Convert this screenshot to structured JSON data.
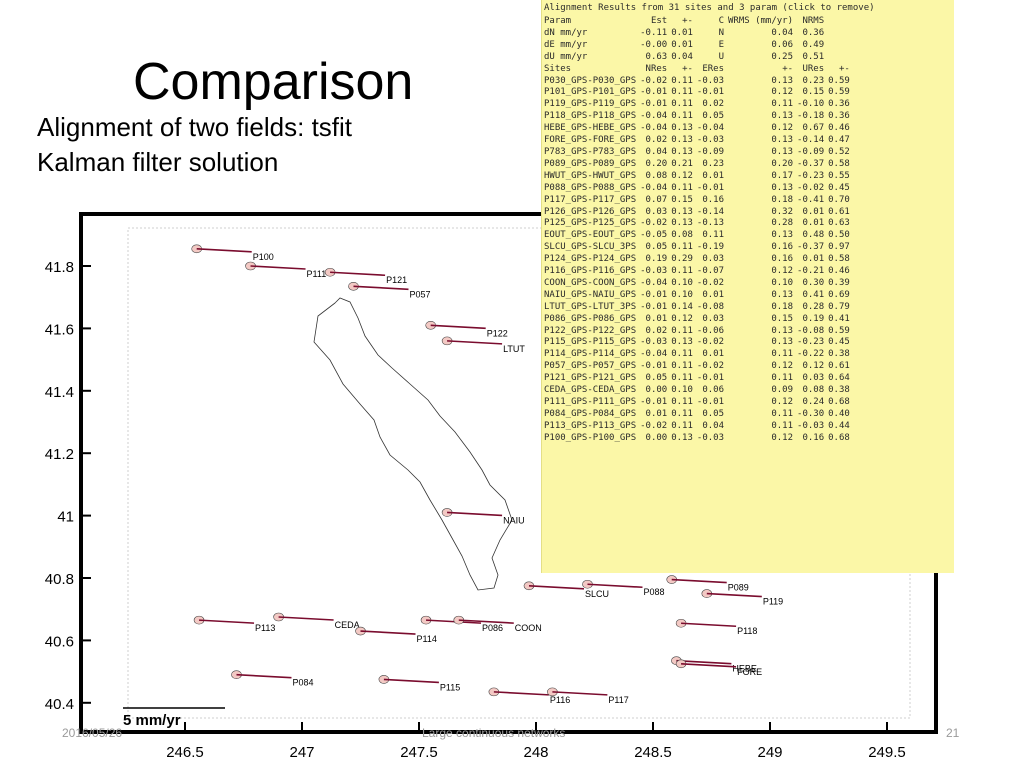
{
  "slide": {
    "title": "Comparison",
    "subtitle_line1": "Alignment of two fields: tsfit",
    "subtitle_line2": "Kalman filter solution",
    "date": "2016/05/26",
    "center_footer": "Large continuous networks",
    "page_number": "21"
  },
  "map": {
    "y_ticks": [
      "41.8",
      "41.6",
      "41.4",
      "41.2",
      "41",
      "40.8",
      "40.6",
      "40.4"
    ],
    "x_ticks": [
      "246.5",
      "247",
      "247.5",
      "248",
      "248.5",
      "249",
      "249.5"
    ],
    "scale_label": "5 mm/yr",
    "vector_color": "#7a0c2e",
    "ellipse_color": "#f3c9c4",
    "sites": [
      {
        "name": "P100",
        "lon": 246.55,
        "lat": 41.855
      },
      {
        "name": "P111",
        "lon": 246.78,
        "lat": 41.8
      },
      {
        "name": "P121",
        "lon": 247.12,
        "lat": 41.78
      },
      {
        "name": "P057",
        "lon": 247.22,
        "lat": 41.735
      },
      {
        "name": "P122",
        "lon": 247.55,
        "lat": 41.61
      },
      {
        "name": "LTUT",
        "lon": 247.62,
        "lat": 41.56
      },
      {
        "name": "NAIU",
        "lon": 247.62,
        "lat": 41.01
      },
      {
        "name": "SLCU",
        "lon": 247.97,
        "lat": 40.775
      },
      {
        "name": "P088",
        "lon": 248.22,
        "lat": 40.78
      },
      {
        "name": "P089",
        "lon": 248.58,
        "lat": 40.795
      },
      {
        "name": "P119",
        "lon": 248.73,
        "lat": 40.75
      },
      {
        "name": "P118",
        "lon": 248.62,
        "lat": 40.655
      },
      {
        "name": "HEBE",
        "lon": 248.6,
        "lat": 40.535
      },
      {
        "name": "FORE",
        "lon": 248.62,
        "lat": 40.525
      },
      {
        "name": "P113",
        "lon": 246.56,
        "lat": 40.665
      },
      {
        "name": "CEDA",
        "lon": 246.9,
        "lat": 40.675
      },
      {
        "name": "P114",
        "lon": 247.25,
        "lat": 40.63
      },
      {
        "name": "P086",
        "lon": 247.53,
        "lat": 40.665
      },
      {
        "name": "COON",
        "lon": 247.67,
        "lat": 40.665
      },
      {
        "name": "P084",
        "lon": 246.72,
        "lat": 40.49
      },
      {
        "name": "P115",
        "lon": 247.35,
        "lat": 40.475
      },
      {
        "name": "P116",
        "lon": 247.82,
        "lat": 40.435
      },
      {
        "name": "P117",
        "lon": 248.07,
        "lat": 40.435
      }
    ]
  },
  "panel": {
    "header": "Alignment Results from 31 sites and 3 param (click to remove)",
    "param_header": [
      "Param",
      "Est",
      "+-",
      "C",
      "WRMS (mm/yr)",
      "NRMS"
    ],
    "params": [
      [
        "dN mm/yr",
        "-0.11",
        "0.01",
        "N",
        "0.04",
        "0.36"
      ],
      [
        "dE mm/yr",
        "-0.00",
        "0.01",
        "E",
        "0.06",
        "0.49"
      ],
      [
        "dU mm/yr",
        "0.63",
        "0.04",
        "U",
        "0.25",
        "0.51"
      ]
    ],
    "site_header": [
      "Sites",
      "NRes",
      "+-",
      "ERes",
      "+-",
      "URes",
      "+-"
    ],
    "sites": [
      [
        "P030_GPS-P030_GPS",
        "-0.02",
        "0.11",
        "-0.03",
        "0.13",
        "0.23",
        "0.59"
      ],
      [
        "P101_GPS-P101_GPS",
        "-0.01",
        "0.11",
        "-0.01",
        "0.12",
        "0.15",
        "0.59"
      ],
      [
        "P119_GPS-P119_GPS",
        "-0.01",
        "0.11",
        "0.02",
        "0.11",
        "-0.10",
        "0.36"
      ],
      [
        "P118_GPS-P118_GPS",
        "-0.04",
        "0.11",
        "0.05",
        "0.13",
        "-0.18",
        "0.36"
      ],
      [
        "HEBE_GPS-HEBE_GPS",
        "-0.04",
        "0.13",
        "-0.04",
        "0.12",
        "0.67",
        "0.46"
      ],
      [
        "FORE_GPS-FORE_GPS",
        "0.02",
        "0.13",
        "-0.03",
        "0.13",
        "-0.14",
        "0.47"
      ],
      [
        "P783_GPS-P783_GPS",
        "0.04",
        "0.13",
        "-0.09",
        "0.13",
        "-0.09",
        "0.52"
      ],
      [
        "P089_GPS-P089_GPS",
        "0.20",
        "0.21",
        "0.23",
        "0.20",
        "-0.37",
        "0.58"
      ],
      [
        "HWUT_GPS-HWUT_GPS",
        "0.08",
        "0.12",
        "0.01",
        "0.17",
        "-0.23",
        "0.55"
      ],
      [
        "P088_GPS-P088_GPS",
        "-0.04",
        "0.11",
        "-0.01",
        "0.13",
        "-0.02",
        "0.45"
      ],
      [
        "P117_GPS-P117_GPS",
        "0.07",
        "0.15",
        "0.16",
        "0.18",
        "-0.41",
        "0.70"
      ],
      [
        "P126_GPS-P126_GPS",
        "0.03",
        "0.13",
        "-0.14",
        "0.32",
        "0.01",
        "0.61"
      ],
      [
        "P125_GPS-P125_GPS",
        "-0.02",
        "0.13",
        "-0.13",
        "0.28",
        "0.01",
        "0.63"
      ],
      [
        "EOUT_GPS-EOUT_GPS",
        "-0.05",
        "0.08",
        "0.11",
        "0.13",
        "0.48",
        "0.50"
      ],
      [
        "SLCU_GPS-SLCU_3PS",
        "0.05",
        "0.11",
        "-0.19",
        "0.16",
        "-0.37",
        "0.97"
      ],
      [
        "P124_GPS-P124_GPS",
        "0.19",
        "0.29",
        "0.03",
        "0.16",
        "0.01",
        "0.58"
      ],
      [
        "P116_GPS-P116_GPS",
        "-0.03",
        "0.11",
        "-0.07",
        "0.12",
        "-0.21",
        "0.46"
      ],
      [
        "COON_GPS-COON_GPS",
        "-0.04",
        "0.10",
        "-0.02",
        "0.10",
        "0.30",
        "0.39"
      ],
      [
        "NAIU_GPS-NAIU_GPS",
        "-0.01",
        "0.10",
        "0.01",
        "0.13",
        "0.41",
        "0.69"
      ],
      [
        "LTUT_GPS-LTUT_3PS",
        "-0.01",
        "0.14",
        "-0.08",
        "0.18",
        "0.28",
        "0.79"
      ],
      [
        "P086_GPS-P086_GPS",
        "0.01",
        "0.12",
        "0.03",
        "0.15",
        "0.19",
        "0.41"
      ],
      [
        "P122_GPS-P122_GPS",
        "0.02",
        "0.11",
        "-0.06",
        "0.13",
        "-0.08",
        "0.59"
      ],
      [
        "P115_GPS-P115_GPS",
        "-0.03",
        "0.13",
        "-0.02",
        "0.13",
        "-0.23",
        "0.45"
      ],
      [
        "P114_GPS-P114_GPS",
        "-0.04",
        "0.11",
        "0.01",
        "0.11",
        "-0.22",
        "0.38"
      ],
      [
        "P057_GPS-P057_GPS",
        "-0.01",
        "0.11",
        "-0.02",
        "0.12",
        "0.12",
        "0.61"
      ],
      [
        "P121_GPS-P121_GPS",
        "0.05",
        "0.11",
        "-0.01",
        "0.11",
        "0.03",
        "0.64"
      ],
      [
        "CEDA_GPS-CEDA_GPS",
        "0.00",
        "0.10",
        "0.06",
        "0.09",
        "0.08",
        "0.38"
      ],
      [
        "P111_GPS-P111_GPS",
        "-0.01",
        "0.11",
        "-0.01",
        "0.12",
        "0.24",
        "0.68"
      ],
      [
        "P084_GPS-P084_GPS",
        "0.01",
        "0.11",
        "0.05",
        "0.11",
        "-0.30",
        "0.40"
      ],
      [
        "P113_GPS-P113_GPS",
        "-0.02",
        "0.11",
        "0.04",
        "0.11",
        "-0.03",
        "0.44"
      ],
      [
        "P100_GPS-P100_GPS",
        "0.00",
        "0.13",
        "-0.03",
        "0.12",
        "0.16",
        "0.68"
      ]
    ]
  }
}
